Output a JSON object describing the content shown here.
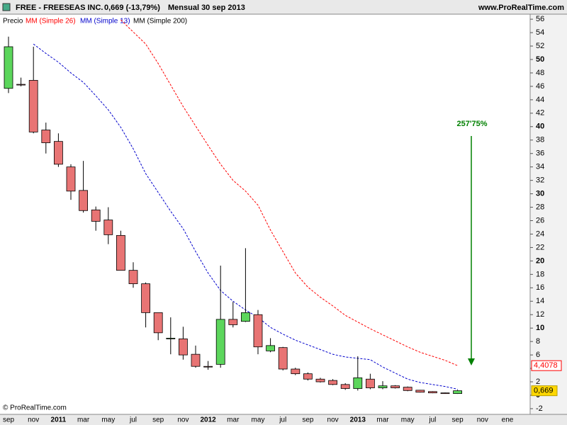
{
  "chart_data": {
    "type": "candlestick",
    "title": "FREE - FREESEAS INC.",
    "subtitle": "0,669 (-13,79%)",
    "period": "Mensual 30 sep 2013",
    "source": "www.ProRealTime.com",
    "copyright": "© ProRealTime.com",
    "annotation": {
      "text": "257'75%",
      "color": "#008000"
    },
    "categories": [
      "sep",
      null,
      "nov",
      null,
      "2011",
      null,
      "mar",
      null,
      "may",
      null,
      "jul",
      null,
      "sep",
      null,
      "nov",
      null,
      "2012",
      null,
      "mar",
      null,
      "may",
      null,
      "jul",
      null,
      "sep",
      null,
      "nov",
      null,
      "2013",
      null,
      "mar",
      null,
      "may",
      null,
      "jul",
      null,
      "sep",
      null,
      "nov",
      null,
      "ene"
    ],
    "ylim": [
      -2.85,
      56.75
    ],
    "yticks": [
      56,
      54,
      52,
      50,
      48,
      46,
      44,
      42,
      40,
      38,
      36,
      34,
      32,
      30,
      28,
      26,
      24,
      22,
      20,
      18,
      16,
      14,
      12,
      10,
      8,
      6,
      4,
      2,
      0,
      -2
    ],
    "grid": false,
    "series": [
      {
        "name": "Precio",
        "up_color": "#5cd65c",
        "down_color": "#e87474",
        "open": [
          45.7,
          46.3,
          46.9,
          39.5,
          37.8,
          34.0,
          30.5,
          27.6,
          26.1,
          23.8,
          18.6,
          16.6,
          12.3,
          8.5,
          8.4,
          6.1,
          4.3,
          4.6,
          11.3,
          11.0,
          12.0,
          6.6,
          7.1,
          3.9,
          3.2,
          2.4,
          2.2,
          1.6,
          1.0,
          2.4,
          1.1,
          1.4,
          1.2,
          0.75,
          0.55,
          0.35,
          0.25,
          null,
          null,
          null,
          null
        ],
        "high": [
          53.4,
          47.3,
          51.9,
          40.6,
          39.0,
          34.4,
          34.9,
          28.1,
          28.0,
          24.5,
          19.8,
          16.8,
          12.3,
          11.6,
          10.2,
          7.4,
          5.1,
          19.3,
          13.9,
          21.9,
          12.7,
          8.5,
          7.2,
          4.1,
          3.4,
          2.6,
          2.4,
          1.8,
          5.8,
          3.2,
          2.1,
          1.5,
          1.3,
          0.8,
          0.6,
          0.4,
          0.8,
          null,
          null,
          null,
          null
        ],
        "low": [
          45.0,
          46.0,
          39.0,
          36.0,
          34.0,
          29.1,
          27.2,
          24.5,
          22.5,
          18.6,
          16.0,
          10.1,
          8.2,
          6.1,
          5.3,
          4.1,
          3.8,
          4.1,
          10.1,
          10.9,
          6.1,
          6.4,
          3.7,
          3.0,
          2.2,
          1.9,
          1.5,
          0.8,
          0.7,
          0.9,
          0.9,
          1.0,
          0.6,
          0.4,
          0.3,
          0.25,
          0.2,
          null,
          null,
          null,
          null
        ],
        "close": [
          51.9,
          46.2,
          39.2,
          37.6,
          34.4,
          30.4,
          27.5,
          25.9,
          23.9,
          18.6,
          16.6,
          12.3,
          9.3,
          8.5,
          6.0,
          4.3,
          4.2,
          11.3,
          10.5,
          12.3,
          7.2,
          7.4,
          3.9,
          3.2,
          2.4,
          2.0,
          1.6,
          1.0,
          2.6,
          1.1,
          1.4,
          1.1,
          0.7,
          0.45,
          0.35,
          0.3,
          0.669,
          null,
          null,
          null,
          null
        ],
        "value_labels": [
          null,
          null,
          null,
          null,
          null,
          null,
          null,
          null,
          null,
          null,
          null,
          null,
          null,
          null,
          null,
          null,
          null,
          null,
          null,
          null,
          null,
          null,
          null,
          null,
          null,
          null,
          null,
          null,
          null,
          null,
          null,
          null,
          null,
          null,
          null,
          null,
          "0,669",
          null,
          null,
          null,
          null
        ]
      },
      {
        "name": "MM (Simple 26)",
        "color": "#ff0000",
        "values": [
          null,
          null,
          null,
          null,
          null,
          null,
          null,
          null,
          null,
          55.9,
          54.1,
          52.3,
          49.4,
          46.2,
          43.0,
          40.1,
          37.2,
          34.4,
          32.0,
          30.4,
          28.3,
          24.6,
          21.4,
          18.2,
          16.1,
          14.6,
          13.3,
          11.9,
          10.9,
          9.9,
          9.0,
          8.1,
          7.2,
          6.4,
          5.8,
          5.2,
          4.4078,
          null,
          null,
          null,
          null
        ],
        "value_labels": [
          null,
          null,
          null,
          null,
          null,
          null,
          null,
          null,
          null,
          null,
          null,
          null,
          null,
          null,
          null,
          null,
          null,
          null,
          null,
          null,
          null,
          null,
          null,
          null,
          null,
          null,
          null,
          null,
          null,
          null,
          null,
          null,
          null,
          null,
          null,
          null,
          "4,4078",
          null,
          null,
          null,
          null
        ]
      },
      {
        "name": "MM (Simple 13)",
        "color": "#0000cc",
        "values": [
          null,
          null,
          52.3,
          50.9,
          49.6,
          48.0,
          46.6,
          44.6,
          42.5,
          39.9,
          36.7,
          33.0,
          30.2,
          27.4,
          24.8,
          21.4,
          18.2,
          15.6,
          14.0,
          12.7,
          11.6,
          10.1,
          9.1,
          8.2,
          7.5,
          6.8,
          6.1,
          5.7,
          5.5,
          5.3,
          4.2,
          3.3,
          2.4,
          1.9,
          1.6,
          1.3,
          0.9,
          null,
          null,
          null,
          null
        ]
      },
      {
        "name": "MM (Simple 200)",
        "color": "#000000",
        "values": [
          null,
          null,
          null,
          null,
          null,
          null,
          null,
          null,
          null,
          null,
          null,
          null,
          null,
          null,
          null,
          null,
          null,
          null,
          null,
          null,
          null,
          null,
          null,
          null,
          null,
          null,
          null,
          null,
          null,
          null,
          null,
          null,
          null,
          null,
          null,
          null,
          null,
          null,
          null,
          null,
          null
        ]
      }
    ]
  }
}
